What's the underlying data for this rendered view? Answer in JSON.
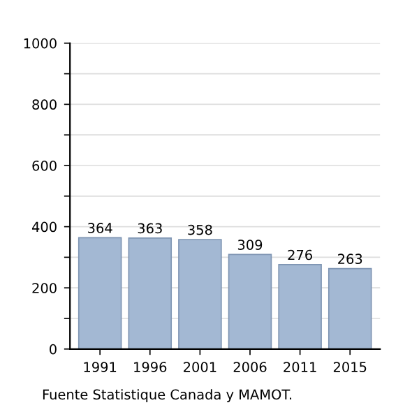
{
  "chart_data": {
    "type": "bar",
    "categories": [
      "1991",
      "1996",
      "2001",
      "2006",
      "2011",
      "2015"
    ],
    "values": [
      364,
      363,
      358,
      309,
      276,
      263
    ],
    "color": "#a3b8d3",
    "data_labels": true,
    "ylim": [
      0,
      1000
    ],
    "yticks": [
      0,
      {
        "value": 100,
        "label": null
      },
      200,
      {
        "value": 300,
        "label": null
      },
      400,
      {
        "value": 500,
        "label": null
      },
      600,
      {
        "value": 700,
        "label": null
      },
      800,
      {
        "value": 900,
        "label": null
      },
      1000
    ],
    "grid": "y",
    "annotations": [
      "Fuente Statistique Canada y MAMOT."
    ]
  }
}
